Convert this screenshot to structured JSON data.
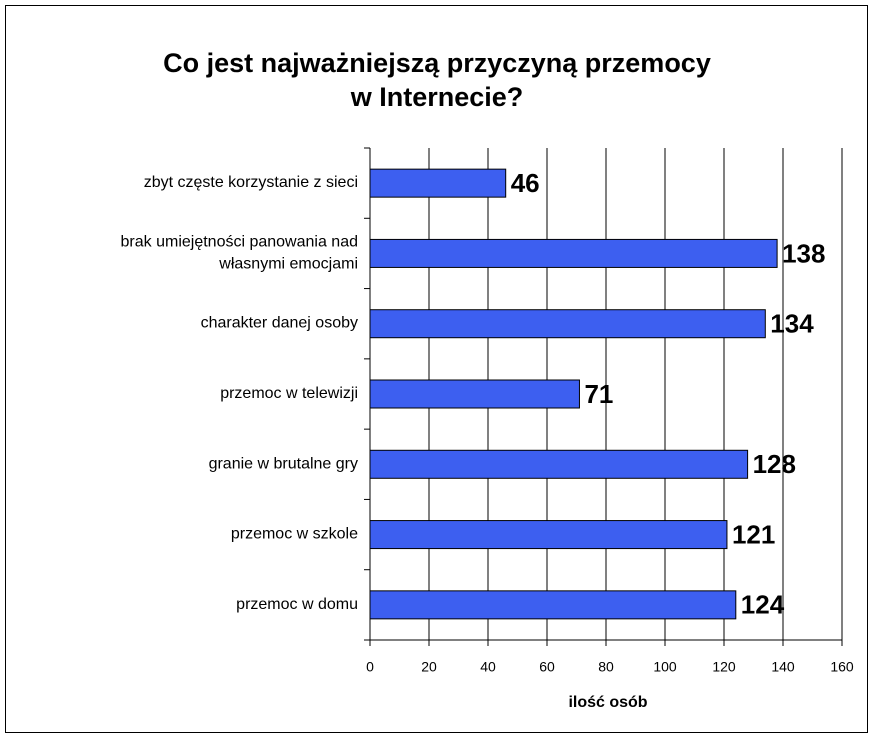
{
  "chart_data": {
    "type": "barh",
    "title": "Co jest najważniejszą przyczyną przemocy w Internecie?",
    "categories": [
      "zbyt częste korzystanie z sieci",
      "brak umiejętności panowania nad własnymi emocjami",
      "charakter danej osoby",
      "przemoc w telewizji",
      "granie w brutalne gry",
      "przemoc w szkole",
      "przemoc w domu"
    ],
    "values": [
      46,
      138,
      134,
      71,
      128,
      121,
      124
    ],
    "color": "#3d5ff0",
    "xlabel": "ilość osób",
    "xlim": [
      0,
      160
    ],
    "xticks": [
      0,
      20,
      40,
      60,
      80,
      100,
      120,
      140,
      160
    ],
    "grid": true
  }
}
